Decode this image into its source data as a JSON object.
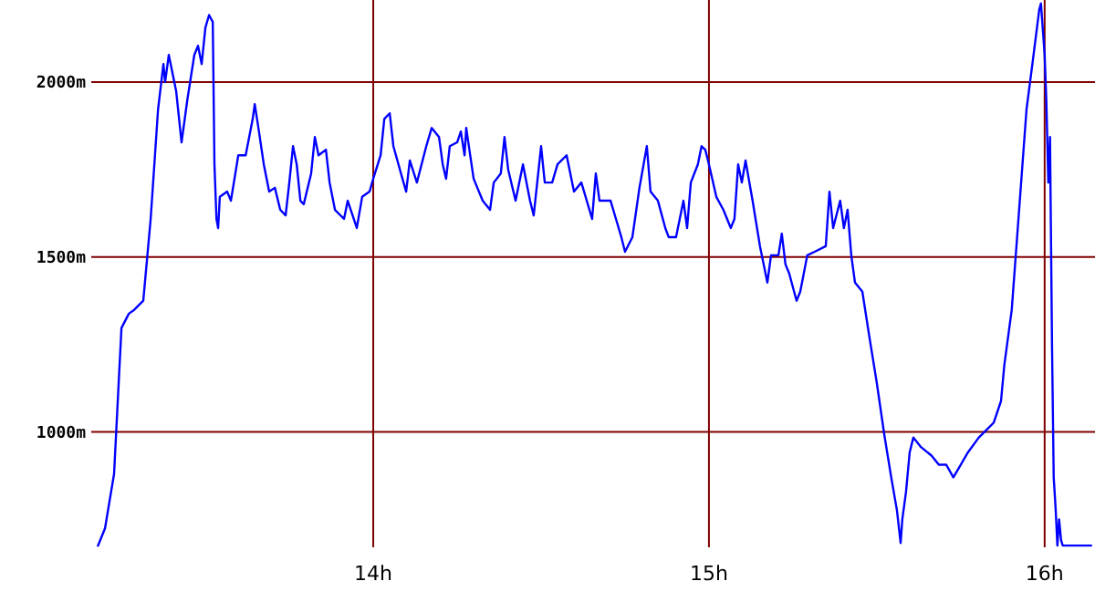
{
  "chart_data": {
    "type": "line",
    "xlim": [
      13.16,
      16.15
    ],
    "ylim": [
      670,
      2235
    ],
    "xticks": [
      {
        "value": 14,
        "label": "14h"
      },
      {
        "value": 15,
        "label": "15h"
      },
      {
        "value": 16,
        "label": "16h"
      }
    ],
    "yticks": [
      {
        "value": 1000,
        "label": "1000m"
      },
      {
        "value": 1500,
        "label": "1500m"
      },
      {
        "value": 2000,
        "label": "2000m"
      }
    ],
    "grid": true,
    "marker": "none",
    "line_style": "solid",
    "series": [
      {
        "color": "#0000ff",
        "x": [
          13.179,
          13.201,
          13.228,
          13.25,
          13.272,
          13.288,
          13.315,
          13.337,
          13.359,
          13.375,
          13.38,
          13.391,
          13.413,
          13.429,
          13.446,
          13.467,
          13.478,
          13.489,
          13.5,
          13.511,
          13.522,
          13.527,
          13.533,
          13.538,
          13.543,
          13.565,
          13.576,
          13.598,
          13.62,
          13.641,
          13.647,
          13.658,
          13.674,
          13.69,
          13.707,
          13.723,
          13.739,
          13.75,
          13.761,
          13.772,
          13.783,
          13.793,
          13.815,
          13.826,
          13.837,
          13.859,
          13.87,
          13.886,
          13.913,
          13.924,
          13.951,
          13.967,
          13.989,
          14.0,
          14.022,
          14.033,
          14.049,
          14.06,
          14.087,
          14.098,
          14.109,
          14.13,
          14.158,
          14.174,
          14.196,
          14.207,
          14.217,
          14.228,
          14.25,
          14.261,
          14.272,
          14.277,
          14.299,
          14.326,
          14.348,
          14.359,
          14.38,
          14.391,
          14.402,
          14.424,
          14.446,
          14.467,
          14.478,
          14.5,
          14.511,
          14.533,
          14.549,
          14.576,
          14.598,
          14.62,
          14.652,
          14.663,
          14.674,
          14.707,
          14.723,
          14.739,
          14.75,
          14.772,
          14.793,
          14.815,
          14.826,
          14.848,
          14.87,
          14.88,
          14.902,
          14.913,
          14.924,
          14.935,
          14.946,
          14.967,
          14.978,
          14.989,
          15.0,
          15.022,
          15.043,
          15.065,
          15.076,
          15.087,
          15.098,
          15.109,
          15.13,
          15.152,
          15.174,
          15.185,
          15.207,
          15.217,
          15.228,
          15.239,
          15.261,
          15.272,
          15.293,
          15.315,
          15.348,
          15.359,
          15.37,
          15.391,
          15.402,
          15.413,
          15.424,
          15.435,
          15.457,
          15.478,
          15.5,
          15.522,
          15.543,
          15.56,
          15.571,
          15.576,
          15.587,
          15.598,
          15.609,
          15.63,
          15.663,
          15.685,
          15.707,
          15.728,
          15.75,
          15.772,
          15.804,
          15.826,
          15.848,
          15.87,
          15.88,
          15.902,
          15.924,
          15.946,
          15.967,
          15.984,
          15.989,
          16.0,
          16.005,
          16.011,
          16.016,
          16.022,
          16.027,
          16.033,
          16.038,
          16.043,
          16.049,
          16.054,
          16.141
        ],
        "values": [
          672,
          724,
          880,
          1297,
          1338,
          1349,
          1375,
          1609,
          1922,
          2052,
          2000,
          2078,
          1974,
          1828,
          1948,
          2078,
          2104,
          2052,
          2156,
          2192,
          2172,
          1765,
          1609,
          1583,
          1672,
          1687,
          1661,
          1791,
          1791,
          1895,
          1937,
          1869,
          1765,
          1687,
          1698,
          1635,
          1619,
          1713,
          1817,
          1765,
          1661,
          1651,
          1739,
          1843,
          1791,
          1807,
          1713,
          1635,
          1609,
          1661,
          1583,
          1672,
          1687,
          1724,
          1791,
          1895,
          1911,
          1817,
          1724,
          1687,
          1776,
          1713,
          1817,
          1869,
          1843,
          1765,
          1724,
          1817,
          1828,
          1859,
          1791,
          1869,
          1724,
          1661,
          1635,
          1713,
          1739,
          1843,
          1750,
          1661,
          1765,
          1661,
          1619,
          1817,
          1713,
          1713,
          1765,
          1791,
          1687,
          1713,
          1609,
          1739,
          1661,
          1661,
          1609,
          1557,
          1515,
          1557,
          1698,
          1817,
          1687,
          1661,
          1583,
          1557,
          1557,
          1609,
          1661,
          1583,
          1713,
          1765,
          1817,
          1807,
          1765,
          1672,
          1635,
          1583,
          1609,
          1765,
          1713,
          1776,
          1661,
          1531,
          1427,
          1505,
          1505,
          1567,
          1479,
          1453,
          1375,
          1401,
          1505,
          1515,
          1531,
          1687,
          1583,
          1661,
          1583,
          1635,
          1505,
          1427,
          1401,
          1271,
          1140,
          994,
          870,
          776,
          682,
          750,
          828,
          942,
          984,
          958,
          932,
          906,
          906,
          870,
          906,
          942,
          984,
          1005,
          1026,
          1088,
          1192,
          1349,
          1635,
          1922,
          2078,
          2208,
          2225,
          2078,
          1948,
          1713,
          1843,
          1245,
          870,
          776,
          675,
          750,
          690,
          675,
          675
        ]
      }
    ]
  }
}
